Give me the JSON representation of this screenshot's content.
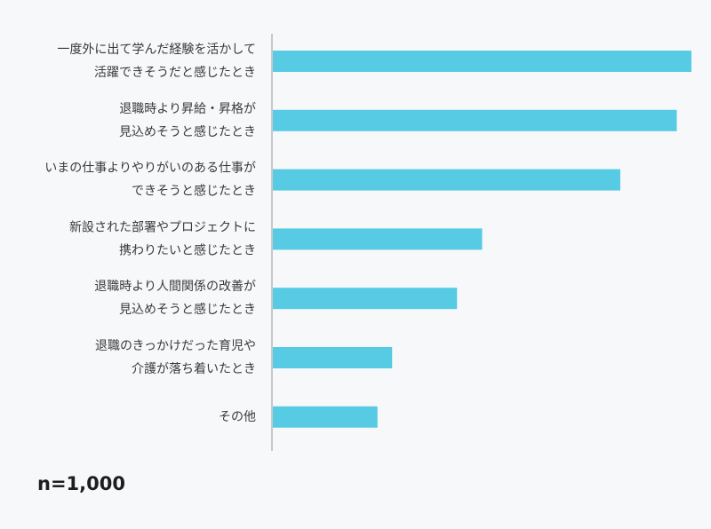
{
  "chart_data": {
    "type": "bar",
    "orientation": "horizontal",
    "categories": [
      [
        "一度外に出て学んだ経験を活かして",
        "活躍できそうだと感じたとき"
      ],
      [
        "退職時より昇給・昇格が",
        "見込めそうと感じたとき"
      ],
      [
        "いまの仕事よりやりがいのある仕事が",
        "できそうと感じたとき"
      ],
      [
        "新設された部署やプロジェクトに",
        "携わりたいと感じたとき"
      ],
      [
        "退職時より人間関係の改善が",
        "見込めそうと感じたとき"
      ],
      [
        "退職のきっかけだった育児や",
        "介護が落ち着いたとき"
      ],
      [
        "その他"
      ]
    ],
    "values": [
      100,
      96.5,
      83,
      50,
      44,
      28.5,
      25
    ],
    "xlim": [
      0,
      100
    ],
    "grid": false,
    "bar_color": "#56cbe3",
    "axis_color": "#999999",
    "note": "n=1,000"
  }
}
